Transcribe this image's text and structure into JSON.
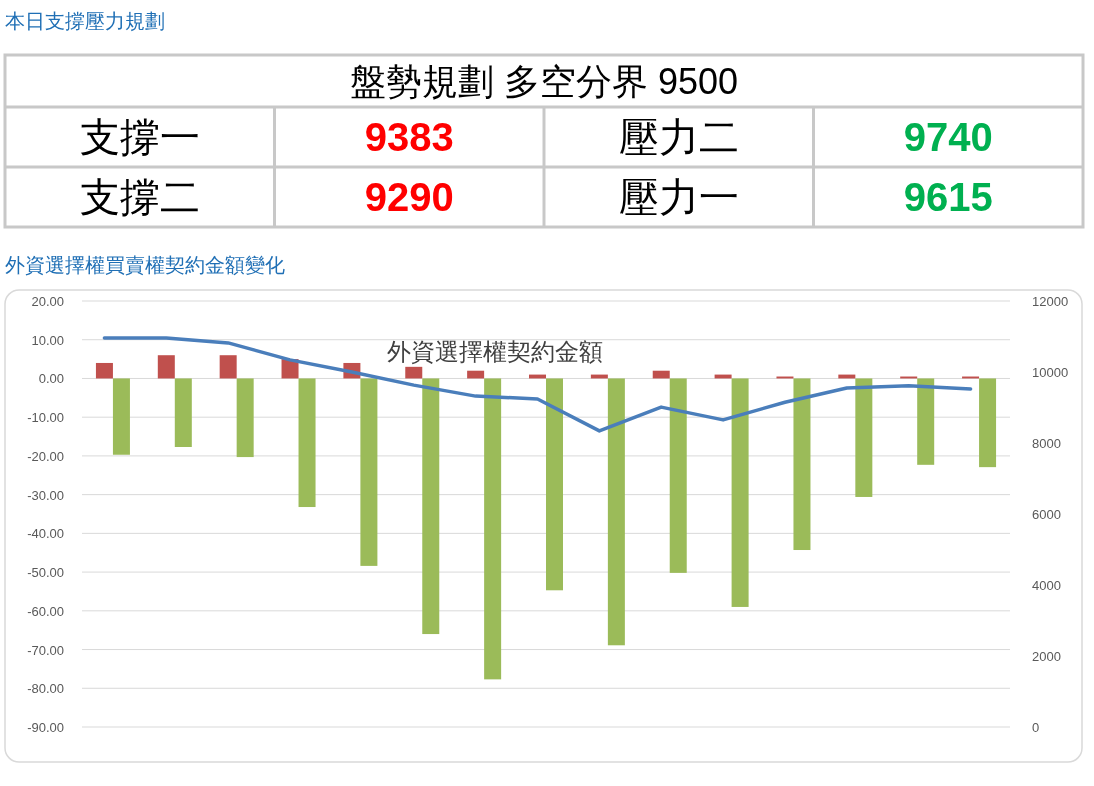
{
  "chart_data": [
    {
      "type": "other",
      "title": "本日支撐壓力規劃",
      "annotations": [
        "盤勢規劃 多空分界 9500",
        "支撐一",
        "9383",
        "壓力二",
        "9740",
        "支撐二",
        "9290",
        "壓力一",
        "9615"
      ],
      "colors": [
        "#000000",
        "#000000",
        "#ff0000",
        "#000000",
        "#00b050",
        "#000000",
        "#ff0000",
        "#000000",
        "#00b050"
      ]
    },
    {
      "type": "bar",
      "title": "外資選擇權買賣權契約金額變化",
      "subtitle": "外資選擇權契約金額",
      "categories": [
        null,
        null,
        null,
        null,
        null,
        null,
        null,
        null,
        null,
        null,
        null,
        null,
        null,
        null,
        null
      ],
      "series": [
        {
          "color": "#c0504d",
          "values": [
            4,
            6,
            6,
            5,
            4,
            3,
            2,
            1,
            1,
            2,
            1,
            0.5,
            1,
            0.5,
            0.5
          ]
        },
        {
          "color": "#9bbb59",
          "values": [
            -19.7,
            -17.7,
            -20.3,
            -33.2,
            -48.4,
            -66,
            -77.7,
            -54.7,
            -68.9,
            -50.2,
            -59,
            -44.3,
            -30.6,
            -22.3,
            -22.9
          ]
        },
        {
          "type": "line",
          "axis": "y2",
          "color": "#4a7ebb",
          "values": [
            10960,
            10960,
            10820,
            10340,
            10000,
            9630,
            9320,
            9240,
            8340,
            9010,
            8650,
            9150,
            9550,
            9610,
            9520
          ]
        }
      ],
      "ylim": [
        -90,
        20
      ],
      "yticks": [
        {
          "value": 20,
          "label": "20.00"
        },
        {
          "value": 10,
          "label": "10.00"
        },
        {
          "value": 0,
          "label": "0.00"
        },
        {
          "value": -10,
          "label": "-10.00"
        },
        {
          "value": -20,
          "label": "-20.00"
        },
        {
          "value": -30,
          "label": "-30.00"
        },
        {
          "value": -40,
          "label": "-40.00"
        },
        {
          "value": -50,
          "label": "-50.00"
        },
        {
          "value": -60,
          "label": "-60.00"
        },
        {
          "value": -70,
          "label": "-70.00"
        },
        {
          "value": -80,
          "label": "-80.00"
        },
        {
          "value": -90,
          "label": "-90.00"
        }
      ],
      "y2lim": [
        0,
        12000
      ],
      "y2ticks": [
        0,
        2000,
        4000,
        6000,
        8000,
        10000,
        12000
      ],
      "grid": "y"
    }
  ]
}
